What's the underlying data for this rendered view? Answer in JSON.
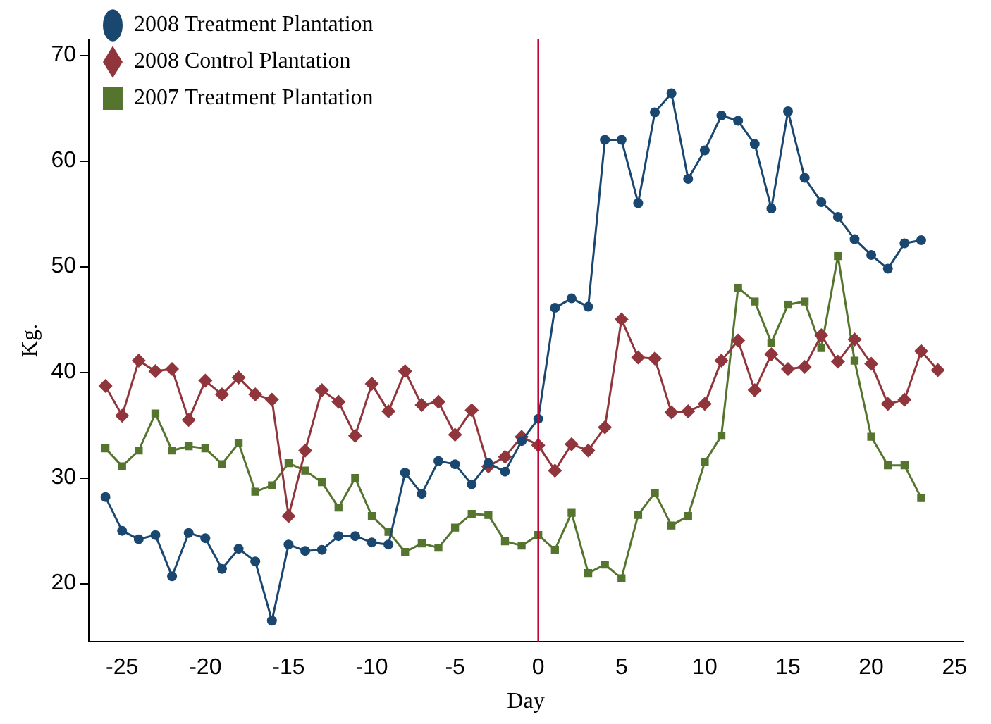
{
  "chart_data": {
    "type": "line",
    "xlabel": "Day",
    "ylabel": "Kg.",
    "xlim": [
      -27,
      25.5
    ],
    "xticks": [
      -25,
      -20,
      -15,
      -10,
      -5,
      0,
      5,
      10,
      15,
      20,
      25
    ],
    "ylim": [
      14.5,
      71.5
    ],
    "yticks": [
      20,
      30,
      40,
      50,
      60,
      70
    ],
    "grid": false,
    "legend": "top left",
    "line_style": "solid",
    "ref_lines": [
      {
        "axis": "x",
        "value": 0,
        "color": "#c10534"
      }
    ],
    "series": [
      {
        "name": "2008 Treatment Plantation",
        "color": "#1a476f",
        "marker": "circle",
        "x": [
          -26,
          -25,
          -24,
          -23,
          -22,
          -21,
          -20,
          -19,
          -18,
          -17,
          -16,
          -15,
          -14,
          -13,
          -12,
          -11,
          -10,
          -9,
          -8,
          -7,
          -6,
          -5,
          -4,
          -3,
          -2,
          -1,
          0,
          1,
          2,
          3,
          4,
          5,
          6,
          7,
          8,
          9,
          10,
          11,
          12,
          13,
          14,
          15,
          16,
          17,
          18,
          19,
          20,
          21,
          22,
          23
        ],
        "values": [
          28.2,
          25,
          24.2,
          24.6,
          20.7,
          24.8,
          24.3,
          21.4,
          23.3,
          22.1,
          16.5,
          23.7,
          23.1,
          23.2,
          24.5,
          24.5,
          23.9,
          23.7,
          30.5,
          28.5,
          31.6,
          31.3,
          29.4,
          31.4,
          30.6,
          33.5,
          35.6,
          46.1,
          47,
          46.2,
          62,
          62,
          56,
          64.6,
          66.4,
          58.3,
          61,
          64.3,
          63.8,
          61.6,
          55.5,
          64.7,
          58.4,
          56.1,
          54.7,
          52.6,
          51.1,
          49.8,
          52.2,
          52.5
        ]
      },
      {
        "name": "2008 Control Plantation",
        "color": "#90353b",
        "marker": "diamond",
        "x": [
          -26,
          -25,
          -24,
          -23,
          -22,
          -21,
          -20,
          -19,
          -18,
          -17,
          -16,
          -15,
          -14,
          -13,
          -12,
          -11,
          -10,
          -9,
          -8,
          -7,
          -6,
          -5,
          -4,
          -3,
          -2,
          -1,
          0,
          1,
          2,
          3,
          4,
          5,
          6,
          7,
          8,
          9,
          10,
          11,
          12,
          13,
          14,
          15,
          16,
          17,
          18,
          19,
          20,
          21,
          22,
          23,
          24
        ],
        "values": [
          38.7,
          35.9,
          41.1,
          40.1,
          40.3,
          35.5,
          39.2,
          37.9,
          39.5,
          37.9,
          37.4,
          26.4,
          32.6,
          38.3,
          37.2,
          34,
          38.9,
          36.3,
          40.1,
          36.9,
          37.2,
          34.1,
          36.4,
          31.1,
          32,
          33.9,
          33.1,
          30.7,
          33.2,
          32.6,
          34.8,
          45,
          41.4,
          41.3,
          36.2,
          36.3,
          37,
          41.1,
          43,
          38.3,
          41.7,
          40.3,
          40.5,
          43.5,
          41,
          43.1,
          40.8,
          37,
          37.4,
          42,
          40.2
        ]
      },
      {
        "name": "2007 Treatment Plantation",
        "color": "#55752f",
        "marker": "square",
        "x": [
          -26,
          -25,
          -24,
          -23,
          -22,
          -21,
          -20,
          -19,
          -18,
          -17,
          -16,
          -15,
          -14,
          -13,
          -12,
          -11,
          -10,
          -9,
          -8,
          -7,
          -6,
          -5,
          -4,
          -3,
          -2,
          -1,
          0,
          1,
          2,
          3,
          4,
          5,
          6,
          7,
          8,
          9,
          10,
          11,
          12,
          13,
          14,
          15,
          16,
          17,
          18,
          19,
          20,
          21,
          22,
          23
        ],
        "values": [
          32.8,
          31.1,
          32.6,
          36.1,
          32.6,
          33,
          32.8,
          31.3,
          33.3,
          28.7,
          29.3,
          31.4,
          30.7,
          29.6,
          27.2,
          30,
          26.4,
          24.9,
          23,
          23.8,
          23.4,
          25.3,
          26.6,
          26.5,
          24,
          23.6,
          24.6,
          23.2,
          26.7,
          21,
          21.8,
          20.5,
          26.5,
          28.6,
          25.5,
          26.4,
          31.5,
          34,
          48,
          46.7,
          42.8,
          46.4,
          46.7,
          42.3,
          51,
          41.1,
          33.9,
          31.2,
          31.2,
          28.1
        ]
      }
    ]
  }
}
